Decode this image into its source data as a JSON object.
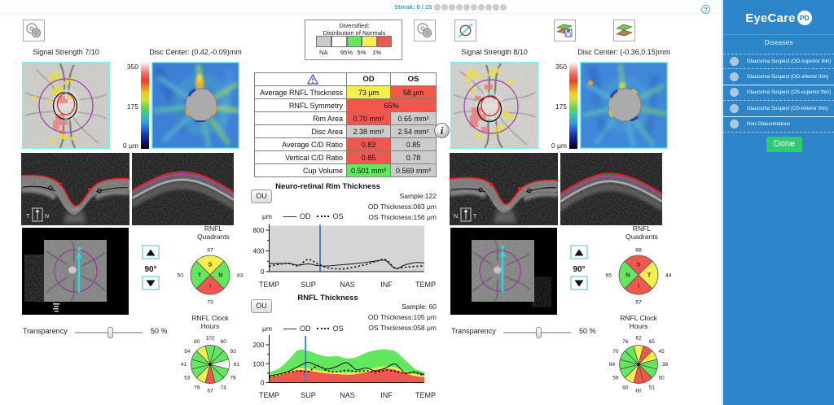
{
  "palette": {
    "green": "#63e75e",
    "yellow": "#f5ee4f",
    "red": "#f2574e",
    "white": "#ffffff",
    "gray": "#cccccc",
    "na_gray": "#c9c9c9",
    "blue_marker": "#4a7fd4"
  },
  "top_bar": {
    "streak_label": "Streak: 0 / 15",
    "dots_total": 10,
    "help_symbol": "?"
  },
  "info_symbol": "i",
  "normals_legend": {
    "title_line1": "Diversified:",
    "title_line2": "Distribution of Normals",
    "na_label": "NA",
    "swatch_colors": [
      "#c9c9c9",
      "#ffffff",
      "#63e75e",
      "#f5ee4f",
      "#f2574e"
    ],
    "boundary_labels": [
      "95%",
      "5%",
      "1%"
    ]
  },
  "toolbar_icons": [
    "registration-icon",
    "registration-icon",
    "disc-scan-icon",
    "layers-save-icon",
    "layers-icon"
  ],
  "od": {
    "signal_strength_label": "Signal Strength  7/10",
    "disc_center_label": "Disc Center:    (0.42,-0.09)mm",
    "colorbar_labels": [
      "350",
      "175",
      "0 μm"
    ],
    "bscan_marker": {
      "left": "T",
      "right": "N"
    },
    "rotation_value": "90°",
    "transparency_label": "Transparency",
    "transparency_value": "50 %",
    "quadrants": {
      "title": "RNFL\nQuadrants",
      "sectors": [
        {
          "pos": "top",
          "letter": "S",
          "value": "87",
          "color": "yellow"
        },
        {
          "pos": "right",
          "letter": "N",
          "value": "83",
          "color": "green"
        },
        {
          "pos": "bottom",
          "letter": "I",
          "value": "73",
          "color": "red"
        },
        {
          "pos": "left",
          "letter": "T",
          "value": "50",
          "color": "green"
        }
      ]
    },
    "clock_hours": {
      "title": "RNFL  Clock\nHours",
      "values": [
        "102",
        "80",
        "93",
        "81",
        "76",
        "74",
        "67",
        "79",
        "53",
        "41",
        "54",
        "80"
      ],
      "colors": [
        "green",
        "green",
        "green",
        "white",
        "green",
        "green",
        "red",
        "yellow",
        "green",
        "green",
        "green",
        "yellow"
      ]
    }
  },
  "os": {
    "signal_strength_label": "Signal Strength  8/10",
    "disc_center_label": "Disc Center:   (-0.36,0.15)mm",
    "colorbar_labels": [
      "350",
      "175",
      "0 μm"
    ],
    "bscan_marker": {
      "left": "N",
      "right": "T"
    },
    "rotation_value": "90°",
    "transparency_label": "Transparency",
    "transparency_value": "50 %",
    "quadrants": {
      "title": "RNFL\nQuadrants",
      "sectors": [
        {
          "pos": "top",
          "letter": "S",
          "value": "68",
          "color": "red"
        },
        {
          "pos": "right",
          "letter": "T",
          "value": "44",
          "color": "yellow"
        },
        {
          "pos": "bottom",
          "letter": "I",
          "value": "57",
          "color": "red"
        },
        {
          "pos": "left",
          "letter": "N",
          "value": "65",
          "color": "green"
        }
      ]
    },
    "clock_hours": {
      "title": "RNFL  Clock\nHours",
      "values": [
        "62",
        "65",
        "45",
        "38",
        "50",
        "51",
        "60",
        "60",
        "59",
        "64",
        "70",
        "76"
      ],
      "colors": [
        "yellow",
        "red",
        "yellow",
        "green",
        "green",
        "red",
        "red",
        "yellow",
        "green",
        "green",
        "green",
        "green"
      ]
    }
  },
  "table": {
    "col_headers": [
      "OD",
      "OS"
    ],
    "header_icon": "warning-triangle-icon",
    "rows": [
      {
        "label": "Average RNFL Thickness",
        "od": "73 μm",
        "od_color": "yellow",
        "os": "58 μm",
        "os_color": "red"
      },
      {
        "label": "RNFL Symmetry",
        "span": "65%",
        "span_color": "red"
      },
      {
        "label": "Rim Area",
        "od": "0.70 mm²",
        "od_color": "red",
        "os": "0.65 mm²",
        "os_color": "gray"
      },
      {
        "label": "Disc Area",
        "od": "2.38 mm²",
        "od_color": "gray",
        "os": "2.54 mm²",
        "os_color": "gray"
      },
      {
        "label": "Average C/D Ratio",
        "od": "0.83",
        "od_color": "red",
        "os": "0.85",
        "os_color": "gray"
      },
      {
        "label": "Vertical C/D Ratio",
        "od": "0.85",
        "od_color": "red",
        "os": "0.78",
        "os_color": "gray"
      },
      {
        "label": "Cup Volume",
        "od": "0.501 mm³",
        "od_color": "green",
        "os": "0.569 mm³",
        "os_color": "gray"
      }
    ]
  },
  "chart_data": [
    {
      "id": "rim",
      "type": "line",
      "title": "Neuro-retinal Rim Thickness",
      "button_label": "OU",
      "unit_label": "μm",
      "stats": [
        "Sample:122",
        "OD Thickness:083 μm",
        "OS Thickness:156 μm"
      ],
      "legend": [
        {
          "label": "OD",
          "style": "solid"
        },
        {
          "label": "OS",
          "style": "dotted"
        }
      ],
      "x_labels": [
        "TEMP",
        "SUP",
        "NAS",
        "INF",
        "TEMP"
      ],
      "y_ticks": [
        0,
        400,
        800
      ],
      "ylim": [
        0,
        886
      ],
      "marker_sample": 84,
      "plot_bg": "#d5d5d5",
      "series": [
        {
          "name": "OD",
          "style": "solid",
          "values": [
            160,
            155,
            160,
            125,
            150,
            118,
            108,
            125,
            140,
            158,
            180,
            205,
            215,
            60,
            130,
            172,
            170
          ]
        },
        {
          "name": "OS",
          "style": "dotted",
          "values": [
            100,
            140,
            160,
            115,
            235,
            150,
            75,
            55,
            60,
            95,
            140,
            195,
            230,
            70,
            85,
            100,
            110
          ]
        }
      ]
    },
    {
      "id": "rnfl",
      "type": "line",
      "title": "RNFL Thickness",
      "button_label": "OU",
      "unit_label": "μm",
      "stats": [
        "Sample: 60",
        "OD Thickness:105 μm",
        "OS Thickness:058 μm"
      ],
      "legend": [
        {
          "label": "OD",
          "style": "solid"
        },
        {
          "label": "OS",
          "style": "dotted"
        }
      ],
      "x_labels": [
        "TEMP",
        "SUP",
        "NAS",
        "INF",
        "TEMP"
      ],
      "y_ticks": [
        0,
        100,
        200
      ],
      "ylim": [
        0,
        243
      ],
      "marker_sample": 60,
      "plot_bg": "#ffffff",
      "bands": {
        "red_top": [
          30,
          38,
          52,
          66,
          64,
          55,
          48,
          45,
          42,
          45,
          55,
          68,
          74,
          68,
          50,
          35,
          28
        ],
        "yellow_top": [
          41,
          49,
          63,
          78,
          76,
          66,
          58,
          55,
          52,
          56,
          67,
          80,
          86,
          80,
          61,
          45,
          38
        ],
        "green_top": [
          55,
          75,
          120,
          172,
          168,
          150,
          138,
          140,
          128,
          135,
          158,
          172,
          176,
          165,
          120,
          75,
          55
        ]
      },
      "series": [
        {
          "name": "OD",
          "style": "solid",
          "values": [
            36,
            45,
            60,
            85,
            108,
            88,
            72,
            86,
            106,
            68,
            78,
            62,
            78,
            98,
            52,
            56,
            42
          ]
        },
        {
          "name": "OS",
          "style": "dotted",
          "values": [
            30,
            42,
            55,
            62,
            58,
            88,
            62,
            58,
            65,
            58,
            62,
            55,
            65,
            60,
            48,
            55,
            35
          ]
        }
      ]
    }
  ],
  "sidebar": {
    "brand": "EyeCare",
    "brand_badge": "PD",
    "header": "Diseases",
    "items": [
      {
        "label": "Glaucoma Suspect (OD-superior thin)"
      },
      {
        "label": "Glaucoma Suspect (OD-inferior thin)"
      },
      {
        "label": "Glaucoma Suspect (OS-superior thin)"
      },
      {
        "label": "Glaucoma Suspect (OS-inferior thin)"
      },
      {
        "label": "Non-Glaucomatous"
      }
    ],
    "done_label": "Done"
  }
}
